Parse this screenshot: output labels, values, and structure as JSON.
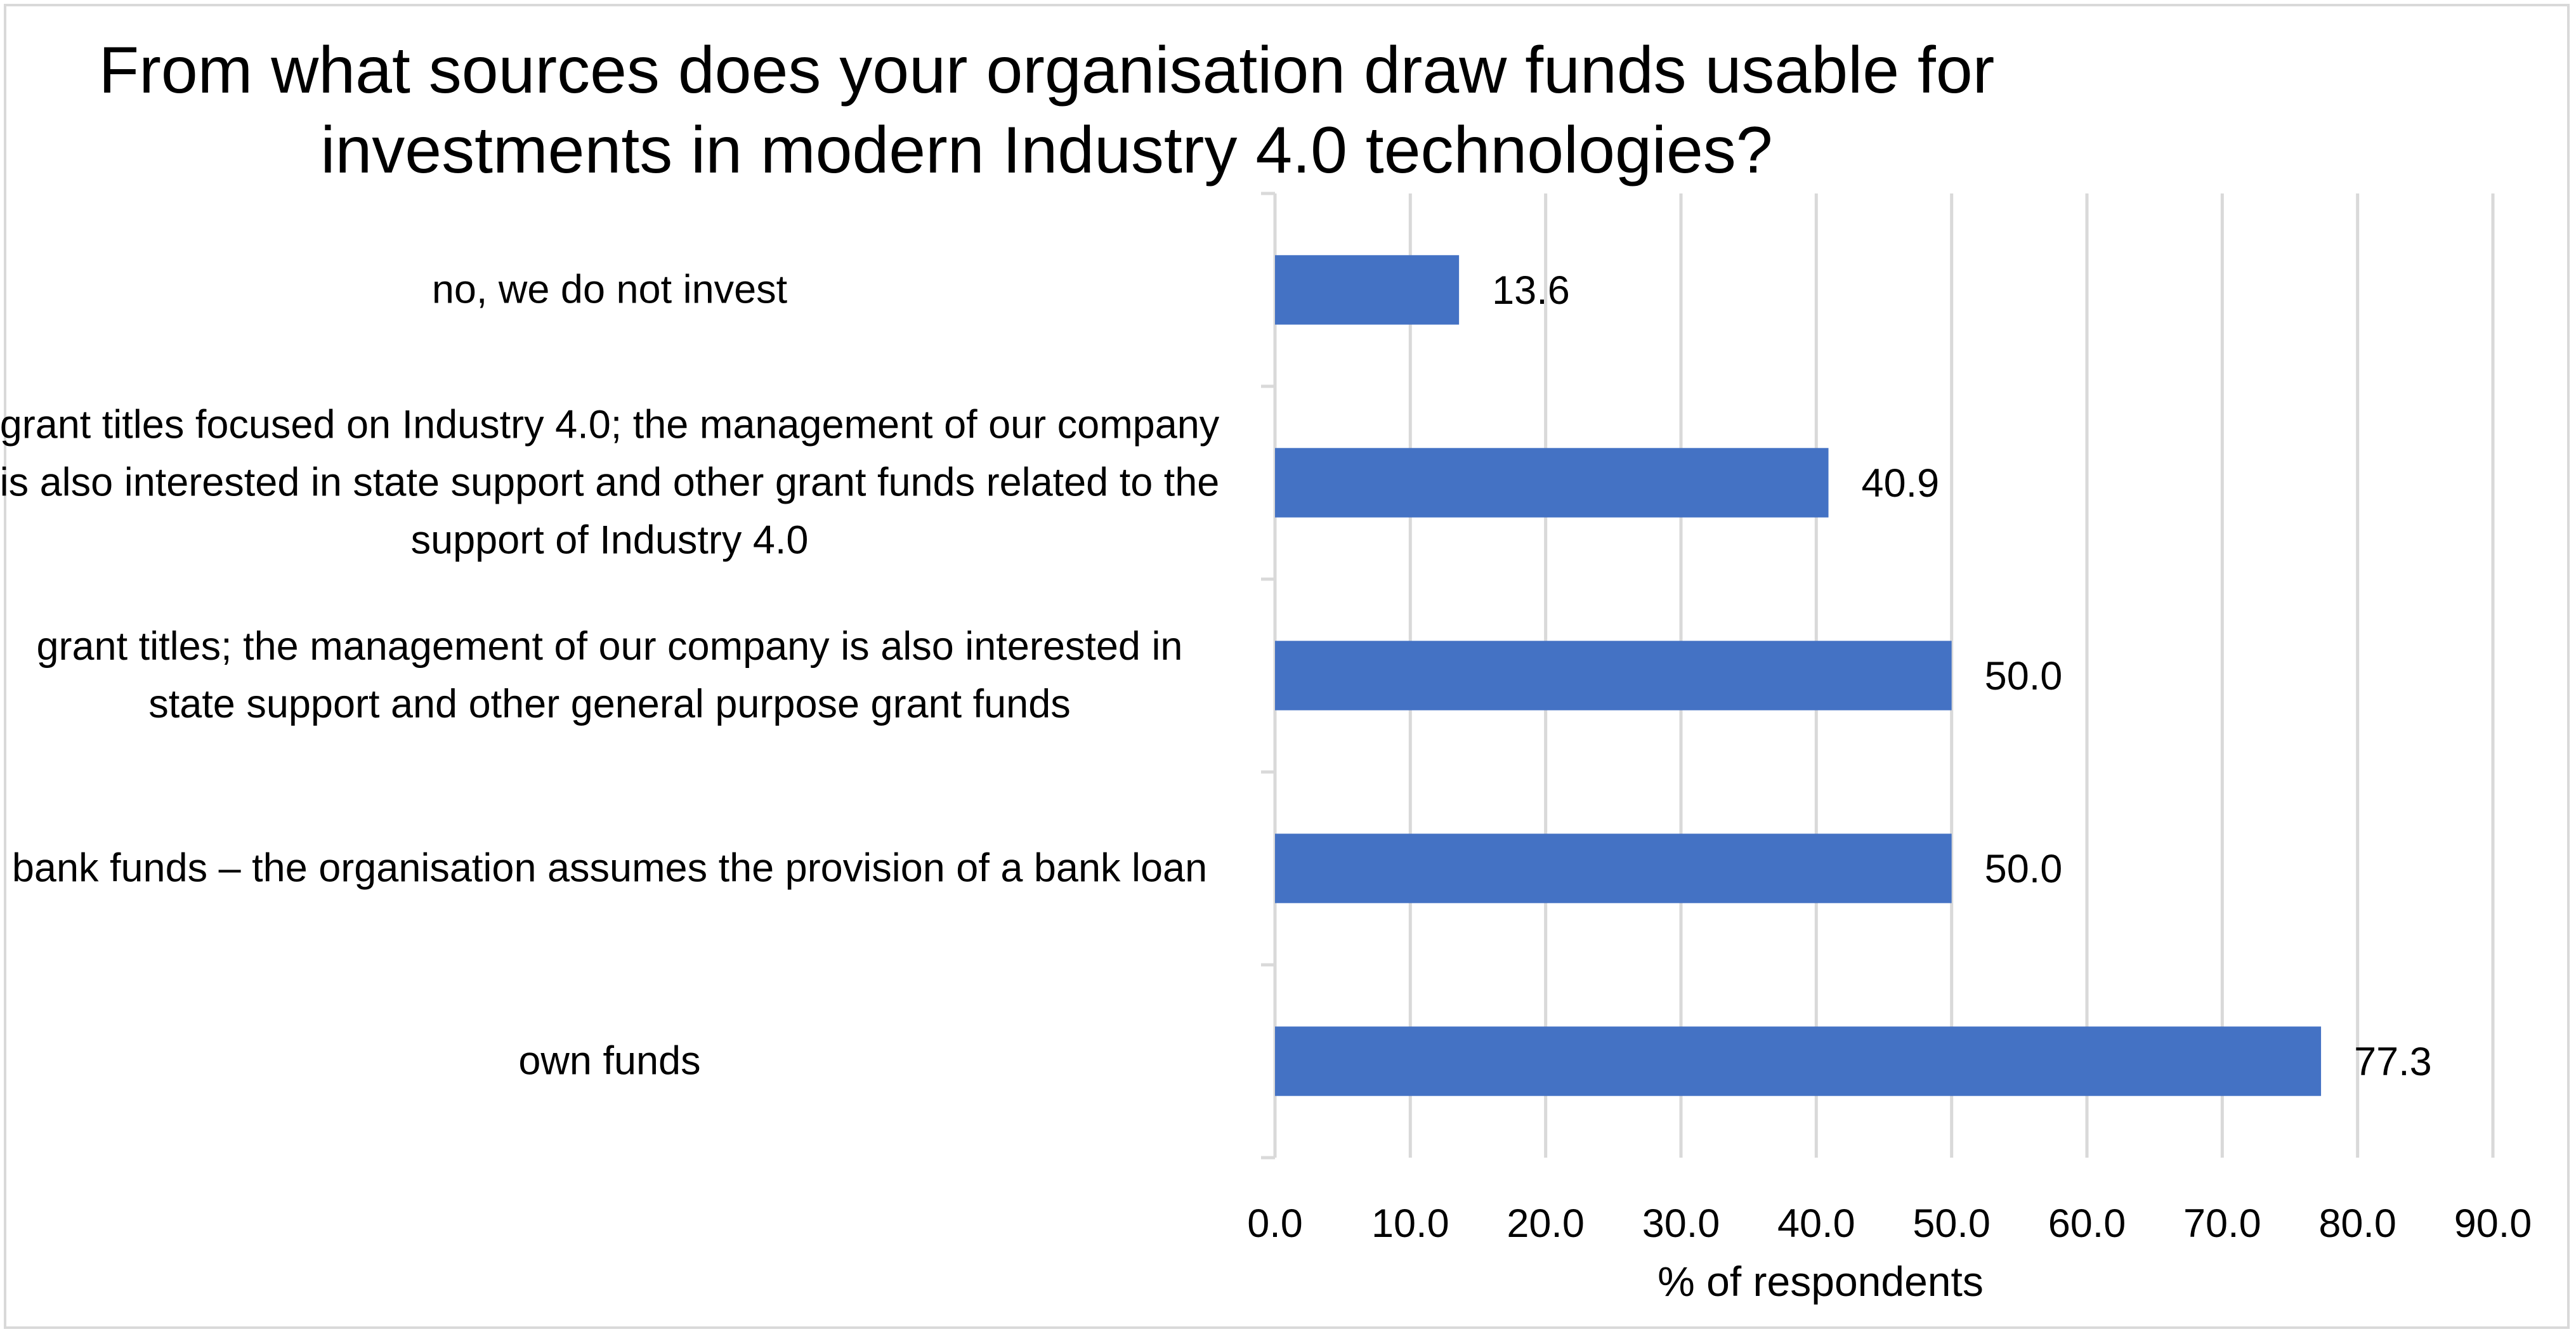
{
  "chart_data": {
    "type": "bar",
    "orientation": "horizontal",
    "title": "From what sources does your organisation draw funds usable for\ninvestments in modern Industry 4.0 technologies?",
    "xlabel": "% of respondents",
    "ylabel": "",
    "categories": [
      "no, we do not invest",
      "grant titles focused on Industry 4.0; the management of our company is also interested in state support and other grant funds related to the support of Industry 4.0",
      "grant titles; the management of our company is also interested in state support and other general purpose grant funds",
      "bank funds – the organisation assumes the provision of a bank loan",
      "own funds"
    ],
    "values": [
      13.6,
      40.9,
      50.0,
      50.0,
      77.3
    ],
    "value_labels": [
      "13.6",
      "40.9",
      "50.0",
      "50.0",
      "77.3"
    ],
    "xlim": [
      0,
      90
    ],
    "xticks": [
      "0.0",
      "10.0",
      "20.0",
      "30.0",
      "40.0",
      "50.0",
      "60.0",
      "70.0",
      "80.0",
      "90.0"
    ],
    "grid": "vertical",
    "legend": "none",
    "bar_color": "#4472c4",
    "grid_color": "#d9d9d9"
  }
}
